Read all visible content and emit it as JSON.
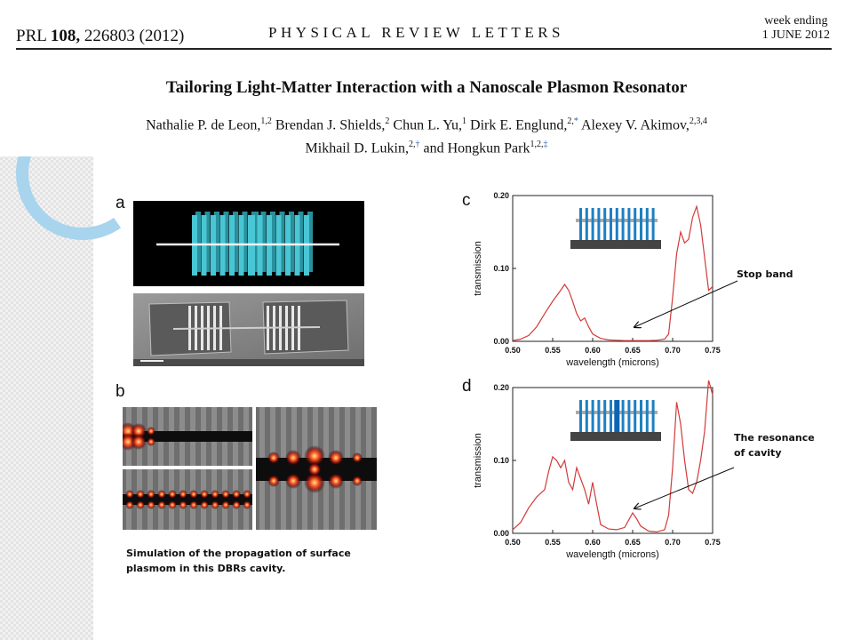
{
  "header": {
    "citation_prefix": "PRL ",
    "citation_volume": "108,",
    "citation_rest": " 226803 (2012)",
    "journal": "PHYSICAL REVIEW LETTERS",
    "week_line1": "week ending",
    "week_line2": "1 JUNE 2012"
  },
  "paper": {
    "title": "Tailoring Light-Matter Interaction with a Nanoscale Plasmon Resonator",
    "authors": [
      {
        "name": "Nathalie P. de Leon,",
        "aff": "1,2",
        "mark": ""
      },
      {
        "name": " Brendan J. Shields,",
        "aff": "2",
        "mark": ""
      },
      {
        "name": " Chun L. Yu,",
        "aff": "1",
        "mark": ""
      },
      {
        "name": " Dirk E. Englund,",
        "aff": "2,",
        "mark": "*"
      },
      {
        "name": " Alexey V. Akimov,",
        "aff": "2,3,4",
        "mark": ""
      }
    ],
    "authors_line2": [
      {
        "name": "Mikhail D. Lukin,",
        "aff": "2,",
        "mark": "†"
      },
      {
        "name": " and Hongkun Park",
        "aff": "1,2,",
        "mark": "‡"
      }
    ]
  },
  "panels": {
    "a_label": "a",
    "b_label": "b",
    "c_label": "c",
    "d_label": "d",
    "b_caption_line1": "Simulation of the propagation of surface",
    "b_caption_line2": "plasmom in this DBRs cavity."
  },
  "annotations": {
    "stop_band": "Stop band",
    "resonance_line1": "The resonance",
    "resonance_line2": "of cavity"
  },
  "colors": {
    "curve": "#d23a3a",
    "fin": "#49c6d4",
    "fin_blue": "#1e7fc2"
  },
  "chart_data": [
    {
      "id": "c",
      "type": "line",
      "xlabel": "wavelength (microns)",
      "ylabel": "transmission",
      "xlim": [
        0.5,
        0.75
      ],
      "ylim": [
        0,
        0.2
      ],
      "xticks": [
        "0.50",
        "0.55",
        "0.60",
        "0.65",
        "0.70",
        "0.75"
      ],
      "yticks": [
        "0.00",
        "0.10",
        "0.20"
      ],
      "x": [
        0.5,
        0.51,
        0.52,
        0.53,
        0.54,
        0.55,
        0.56,
        0.565,
        0.57,
        0.575,
        0.58,
        0.585,
        0.59,
        0.595,
        0.6,
        0.61,
        0.62,
        0.63,
        0.64,
        0.65,
        0.66,
        0.67,
        0.68,
        0.69,
        0.695,
        0.7,
        0.705,
        0.71,
        0.715,
        0.72,
        0.725,
        0.73,
        0.735,
        0.74,
        0.745,
        0.75
      ],
      "y": [
        0.001,
        0.003,
        0.008,
        0.02,
        0.038,
        0.055,
        0.07,
        0.078,
        0.07,
        0.055,
        0.038,
        0.028,
        0.032,
        0.02,
        0.01,
        0.004,
        0.002,
        0.0015,
        0.001,
        0.001,
        0.001,
        0.001,
        0.0015,
        0.003,
        0.01,
        0.06,
        0.12,
        0.15,
        0.135,
        0.14,
        0.17,
        0.185,
        0.16,
        0.115,
        0.07,
        0.075
      ]
    },
    {
      "id": "d",
      "type": "line",
      "xlabel": "wavelength (microns)",
      "ylabel": "transmission",
      "xlim": [
        0.5,
        0.75
      ],
      "ylim": [
        0,
        0.2
      ],
      "xticks": [
        "0.50",
        "0.55",
        "0.60",
        "0.65",
        "0.70",
        "0.75"
      ],
      "yticks": [
        "0.00",
        "0.10",
        "0.20"
      ],
      "x": [
        0.5,
        0.51,
        0.52,
        0.53,
        0.535,
        0.54,
        0.545,
        0.55,
        0.555,
        0.56,
        0.565,
        0.57,
        0.575,
        0.58,
        0.585,
        0.59,
        0.595,
        0.6,
        0.605,
        0.61,
        0.62,
        0.63,
        0.64,
        0.645,
        0.65,
        0.655,
        0.66,
        0.67,
        0.68,
        0.69,
        0.695,
        0.7,
        0.705,
        0.71,
        0.715,
        0.72,
        0.725,
        0.73,
        0.735,
        0.74,
        0.745,
        0.75
      ],
      "y": [
        0.005,
        0.015,
        0.035,
        0.05,
        0.055,
        0.06,
        0.085,
        0.105,
        0.1,
        0.09,
        0.1,
        0.07,
        0.06,
        0.09,
        0.075,
        0.06,
        0.04,
        0.07,
        0.04,
        0.012,
        0.006,
        0.005,
        0.008,
        0.018,
        0.028,
        0.02,
        0.01,
        0.003,
        0.002,
        0.005,
        0.025,
        0.09,
        0.18,
        0.15,
        0.1,
        0.06,
        0.055,
        0.07,
        0.1,
        0.14,
        0.21,
        0.19
      ]
    }
  ]
}
